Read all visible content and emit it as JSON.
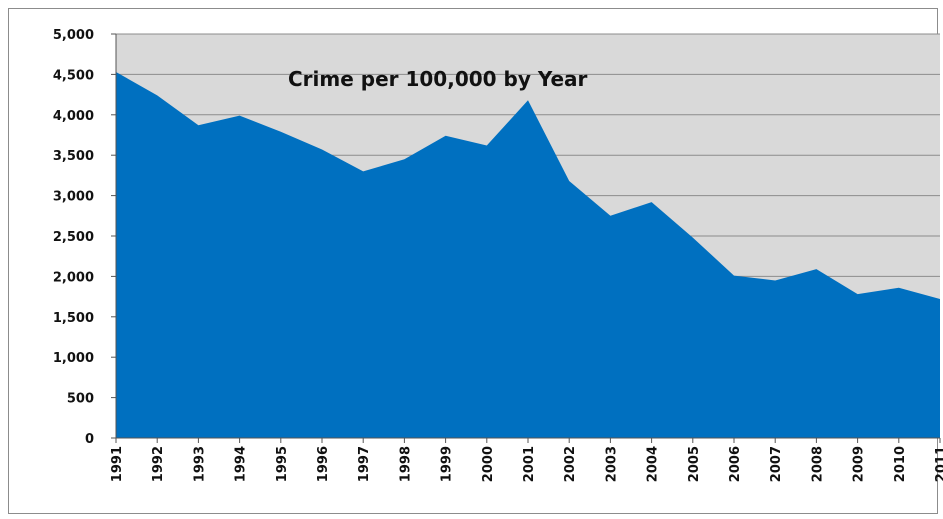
{
  "chart_data": {
    "type": "area",
    "title": "Crime per 100,000 by Year",
    "xlabel": "",
    "ylabel": "",
    "categories": [
      "1991",
      "1992",
      "1993",
      "1994",
      "1995",
      "1996",
      "1997",
      "1998",
      "1999",
      "2000",
      "2001",
      "2002",
      "2003",
      "2004",
      "2005",
      "2006",
      "2007",
      "2008",
      "2009",
      "2010",
      "2011"
    ],
    "values": [
      4530,
      4240,
      3870,
      3990,
      3790,
      3570,
      3300,
      3450,
      3740,
      3620,
      4180,
      3180,
      2750,
      2920,
      2480,
      2010,
      1950,
      2090,
      1780,
      1860,
      1720
    ],
    "ylim": [
      0,
      5000
    ],
    "yticks": [
      0,
      500,
      1000,
      1500,
      2000,
      2500,
      3000,
      3500,
      4000,
      4500,
      5000
    ],
    "ytick_labels": [
      "0",
      "500",
      "1,000",
      "1,500",
      "2,000",
      "2,500",
      "3,000",
      "3,500",
      "4,000",
      "4,500",
      "5,000"
    ],
    "grid": true,
    "colors": {
      "fill": "#0070C0",
      "plot_bg": "#D9D9D9",
      "grid": "#8C8C8C"
    }
  }
}
